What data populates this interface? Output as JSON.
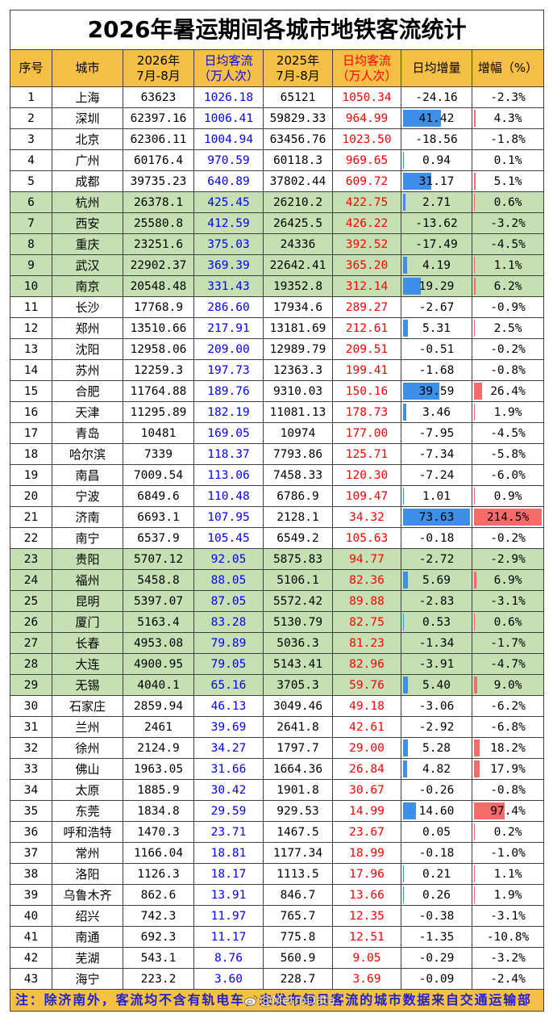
{
  "colors": {
    "header_bg": "#f6bf45",
    "highlight_bg": "#c6e0b4",
    "grid": "#404040",
    "note_text": "#2222cc"
  },
  "watermark": "@MetroData",
  "chart_data": {
    "type": "table",
    "title": "2026年暑运期间各城市地铁客流统计",
    "columns": [
      {
        "label": [
          "序号"
        ]
      },
      {
        "label": [
          "城市"
        ]
      },
      {
        "label": [
          "2026年",
          "7月-8月"
        ]
      },
      {
        "label": [
          "日均客流",
          "（万人次）"
        ],
        "text_color": "#0000ff"
      },
      {
        "label": [
          "2025年",
          "7月-8月"
        ]
      },
      {
        "label": [
          "日均客流",
          "（万人次）"
        ],
        "text_color": "#ff0000"
      },
      {
        "label": [
          "日均增量"
        ],
        "bar_color": "#3d8fe8"
      },
      {
        "label": [
          "增幅（%）"
        ],
        "bar_color": "#f76b6b"
      }
    ],
    "rows": [
      [
        "1",
        "上海",
        "63623",
        "1026.18",
        "65121",
        "1050.34",
        "-24.16",
        "-2.3%"
      ],
      [
        "2",
        "深圳",
        "62397.16",
        "1006.41",
        "59829.33",
        "964.99",
        "41.42",
        "4.3%"
      ],
      [
        "3",
        "北京",
        "62306.11",
        "1004.94",
        "63456.76",
        "1023.50",
        "-18.56",
        "-1.8%"
      ],
      [
        "4",
        "广州",
        "60176.4",
        "970.59",
        "60118.3",
        "969.65",
        "0.94",
        "0.1%"
      ],
      [
        "5",
        "成都",
        "39735.23",
        "640.89",
        "37802.44",
        "609.72",
        "31.17",
        "5.1%"
      ],
      [
        "6",
        "杭州",
        "26378.1",
        "425.45",
        "26210.2",
        "422.75",
        "2.71",
        "0.6%"
      ],
      [
        "7",
        "西安",
        "25580.8",
        "412.59",
        "26425.5",
        "426.22",
        "-13.62",
        "-3.2%"
      ],
      [
        "8",
        "重庆",
        "23251.6",
        "375.03",
        "24336",
        "392.52",
        "-17.49",
        "-4.5%"
      ],
      [
        "9",
        "武汉",
        "22902.37",
        "369.39",
        "22642.41",
        "365.20",
        "4.19",
        "1.1%"
      ],
      [
        "10",
        "南京",
        "20548.48",
        "331.43",
        "19352.8",
        "312.14",
        "19.29",
        "6.2%"
      ],
      [
        "11",
        "长沙",
        "17768.9",
        "286.60",
        "17934.6",
        "289.27",
        "-2.67",
        "-0.9%"
      ],
      [
        "12",
        "郑州",
        "13510.66",
        "217.91",
        "13181.69",
        "212.61",
        "5.31",
        "2.5%"
      ],
      [
        "13",
        "沈阳",
        "12958.06",
        "209.00",
        "12989.79",
        "209.51",
        "-0.51",
        "-0.2%"
      ],
      [
        "14",
        "苏州",
        "12259.3",
        "197.73",
        "12363.3",
        "199.41",
        "-1.68",
        "-0.8%"
      ],
      [
        "15",
        "合肥",
        "11764.88",
        "189.76",
        "9310.03",
        "150.16",
        "39.59",
        "26.4%"
      ],
      [
        "16",
        "天津",
        "11295.89",
        "182.19",
        "11081.13",
        "178.73",
        "3.46",
        "1.9%"
      ],
      [
        "17",
        "青岛",
        "10481",
        "169.05",
        "10974",
        "177.00",
        "-7.95",
        "-4.5%"
      ],
      [
        "18",
        "哈尔滨",
        "7339",
        "118.37",
        "7793.86",
        "125.71",
        "-7.34",
        "-5.8%"
      ],
      [
        "19",
        "南昌",
        "7009.54",
        "113.06",
        "7458.33",
        "120.30",
        "-7.24",
        "-6.0%"
      ],
      [
        "20",
        "宁波",
        "6849.6",
        "110.48",
        "6786.9",
        "109.47",
        "1.01",
        "0.9%"
      ],
      [
        "21",
        "济南",
        "6693.1",
        "107.95",
        "2128.1",
        "34.32",
        "73.63",
        "214.5%"
      ],
      [
        "22",
        "南宁",
        "6537.9",
        "105.45",
        "6549.2",
        "105.63",
        "-0.18",
        "-0.2%"
      ],
      [
        "23",
        "贵阳",
        "5707.12",
        "92.05",
        "5875.83",
        "94.77",
        "-2.72",
        "-2.9%"
      ],
      [
        "24",
        "福州",
        "5458.8",
        "88.05",
        "5106.1",
        "82.36",
        "5.69",
        "6.9%"
      ],
      [
        "25",
        "昆明",
        "5397.07",
        "87.05",
        "5572.42",
        "89.88",
        "-2.83",
        "-3.1%"
      ],
      [
        "26",
        "厦门",
        "5163.4",
        "83.28",
        "5130.79",
        "82.75",
        "0.53",
        "0.6%"
      ],
      [
        "27",
        "长春",
        "4953.08",
        "79.89",
        "5036.3",
        "81.23",
        "-1.34",
        "-1.7%"
      ],
      [
        "28",
        "大连",
        "4900.95",
        "79.05",
        "5143.41",
        "82.96",
        "-3.91",
        "-4.7%"
      ],
      [
        "29",
        "无锡",
        "4040.1",
        "65.16",
        "3705.3",
        "59.76",
        "5.40",
        "9.0%"
      ],
      [
        "30",
        "石家庄",
        "2859.94",
        "46.13",
        "3049.46",
        "49.18",
        "-3.06",
        "-6.2%"
      ],
      [
        "31",
        "兰州",
        "2461",
        "39.69",
        "2641.8",
        "42.61",
        "-2.92",
        "-6.8%"
      ],
      [
        "32",
        "徐州",
        "2124.9",
        "34.27",
        "1797.7",
        "29.00",
        "5.28",
        "18.2%"
      ],
      [
        "33",
        "佛山",
        "1963.05",
        "31.66",
        "1664.36",
        "26.84",
        "4.82",
        "17.9%"
      ],
      [
        "34",
        "太原",
        "1885.9",
        "30.42",
        "1901.8",
        "30.67",
        "-0.26",
        "-0.8%"
      ],
      [
        "35",
        "东莞",
        "1834.8",
        "29.59",
        "929.53",
        "14.99",
        "14.60",
        "97.4%"
      ],
      [
        "36",
        "呼和浩特",
        "1470.3",
        "23.71",
        "1467.5",
        "23.67",
        "0.05",
        "0.2%"
      ],
      [
        "37",
        "常州",
        "1166.04",
        "18.81",
        "1177.34",
        "18.99",
        "-0.18",
        "-1.0%"
      ],
      [
        "38",
        "洛阳",
        "1126.3",
        "18.17",
        "1113.5",
        "17.96",
        "0.21",
        "1.1%"
      ],
      [
        "39",
        "乌鲁木齐",
        "862.6",
        "13.91",
        "846.7",
        "13.66",
        "0.26",
        "1.9%"
      ],
      [
        "40",
        "绍兴",
        "742.3",
        "11.97",
        "765.7",
        "12.35",
        "-0.38",
        "-3.1%"
      ],
      [
        "41",
        "南通",
        "692.3",
        "11.17",
        "775.8",
        "12.51",
        "-1.35",
        "-10.8%"
      ],
      [
        "42",
        "芜湖",
        "543.1",
        "8.76",
        "560.9",
        "9.05",
        "-0.29",
        "-3.2%"
      ],
      [
        "43",
        "海宁",
        "223.2",
        "3.60",
        "228.7",
        "3.69",
        "-0.09",
        "-2.4%"
      ]
    ],
    "highlight_rows": [
      6,
      7,
      8,
      9,
      10,
      23,
      24,
      25,
      26,
      27,
      28,
      29
    ],
    "note": "注：除济南外，客流均不含有轨电车，未发布每日客流的城市数据来自交通运输部"
  }
}
